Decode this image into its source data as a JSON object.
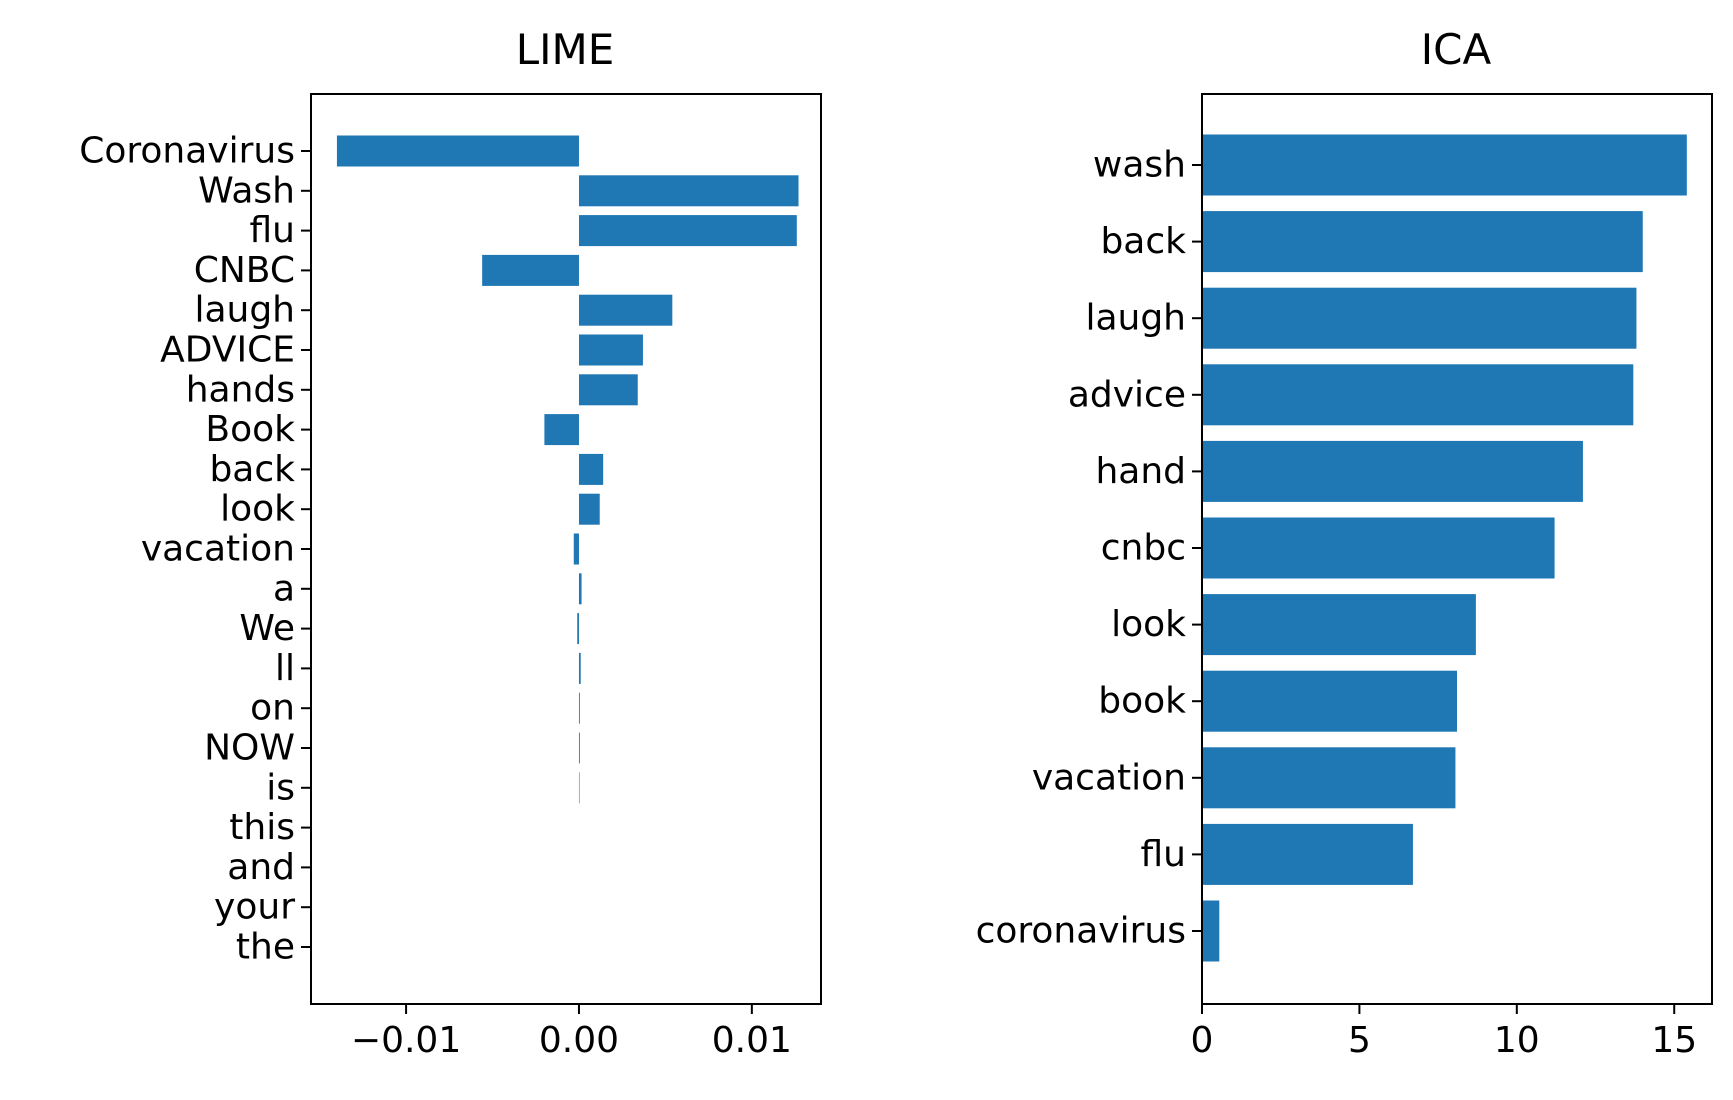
{
  "chart_data": [
    {
      "type": "bar",
      "orientation": "horizontal",
      "title": "LIME",
      "xlabel": "",
      "ylabel": "",
      "categories": [
        "Coronavirus",
        "Wash",
        "flu",
        "CNBC",
        "laugh",
        "ADVICE",
        "hands",
        "Book",
        "back",
        "look",
        "vacation",
        "a",
        "We",
        "ll",
        "on",
        "NOW",
        "is",
        "this",
        "and",
        "your",
        "the"
      ],
      "values": [
        -0.014,
        0.0127,
        0.0126,
        -0.0056,
        0.0054,
        0.0037,
        0.0034,
        -0.002,
        0.0014,
        0.0012,
        -0.0003,
        0.00015,
        -0.0001,
        0.0001,
        5e-05,
        5e-05,
        3e-05,
        0,
        0,
        0,
        0
      ],
      "xlim": [
        -0.0155,
        0.014
      ],
      "xticks": [
        -0.01,
        0.0,
        0.01
      ],
      "xtick_labels": [
        "−0.01",
        "0.00",
        "0.01"
      ],
      "grid": false,
      "color": "#1f77b4"
    },
    {
      "type": "bar",
      "orientation": "horizontal",
      "title": "ICA",
      "xlabel": "",
      "ylabel": "",
      "categories": [
        "wash",
        "back",
        "laugh",
        "advice",
        "hand",
        "cnbc",
        "look",
        "book",
        "vacation",
        "flu",
        "coronavirus"
      ],
      "values": [
        15.4,
        14.0,
        13.8,
        13.7,
        12.1,
        11.2,
        8.7,
        8.1,
        8.05,
        6.7,
        0.55
      ],
      "xlim": [
        0,
        16.2
      ],
      "xticks": [
        0,
        5,
        10,
        15
      ],
      "xtick_labels": [
        "0",
        "5",
        "10",
        "15"
      ],
      "grid": false,
      "color": "#1f77b4"
    }
  ]
}
